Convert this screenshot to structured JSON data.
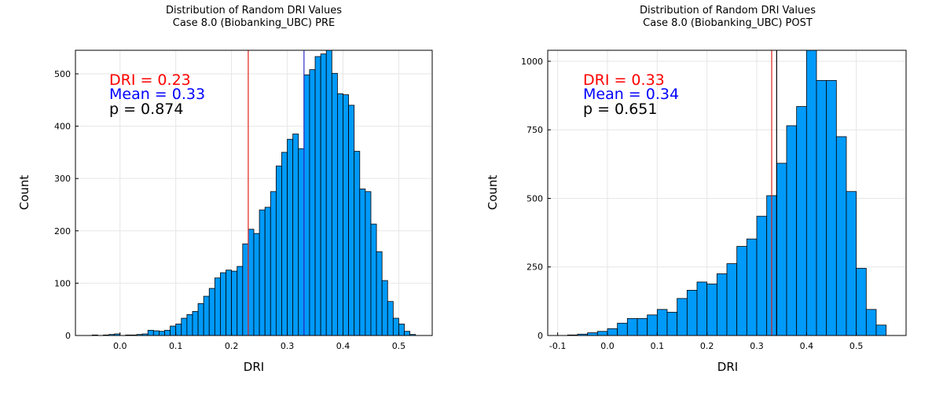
{
  "chart_data": [
    {
      "type": "bar",
      "title": "Distribution of Random DRI Values",
      "subtitle": "Case 8.0 (Biobanking_UBC) PRE",
      "xlabel": "DRI",
      "ylabel": "Count",
      "xlim": [
        -0.08,
        0.56
      ],
      "ylim": [
        0,
        545
      ],
      "xticks": [
        0.0,
        0.1,
        0.2,
        0.3,
        0.4,
        0.5
      ],
      "xtick_labels": [
        "0.0",
        "0.1",
        "0.2",
        "0.3",
        "0.4",
        "0.5"
      ],
      "yticks": [
        0,
        100,
        200,
        300,
        400,
        500
      ],
      "ytick_labels": [
        "0",
        "100",
        "200",
        "300",
        "400",
        "500"
      ],
      "bin_width": 0.01,
      "bin_starts": [
        -0.05,
        -0.04,
        -0.03,
        -0.02,
        -0.01,
        0.0,
        0.01,
        0.02,
        0.03,
        0.04,
        0.05,
        0.06,
        0.07,
        0.08,
        0.09,
        0.1,
        0.11,
        0.12,
        0.13,
        0.14,
        0.15,
        0.16,
        0.17,
        0.18,
        0.19,
        0.2,
        0.21,
        0.22,
        0.23,
        0.24,
        0.25,
        0.26,
        0.27,
        0.28,
        0.29,
        0.3,
        0.31,
        0.32,
        0.33,
        0.34,
        0.35,
        0.36,
        0.37,
        0.38,
        0.39,
        0.4,
        0.41,
        0.42,
        0.43,
        0.44,
        0.45,
        0.46,
        0.47,
        0.48,
        0.49,
        0.5,
        0.51,
        0.52
      ],
      "counts": [
        1,
        0,
        1,
        2,
        3,
        0,
        1,
        1,
        2,
        3,
        10,
        9,
        8,
        10,
        18,
        22,
        33,
        40,
        46,
        61,
        75,
        90,
        110,
        120,
        125,
        123,
        132,
        175,
        203,
        195,
        240,
        245,
        275,
        324,
        350,
        375,
        385,
        357,
        498,
        508,
        533,
        538,
        548,
        501,
        462,
        460,
        440,
        352,
        280,
        275,
        213,
        160,
        105,
        65,
        33,
        22,
        8,
        2
      ],
      "grid": true,
      "legend": "none",
      "vlines": [
        {
          "x": 0.23,
          "color": "#e0201b"
        },
        {
          "x": 0.33,
          "color": "#2d2dc8"
        }
      ],
      "annotations": [
        {
          "text": "DRI = 0.23",
          "color": "#ff0000"
        },
        {
          "text": "Mean = 0.33",
          "color": "#0000ff"
        },
        {
          "text": "p = 0.874",
          "color": "#000000"
        }
      ],
      "bar_color": "#009af9"
    },
    {
      "type": "bar",
      "title": "Distribution of Random DRI Values",
      "subtitle": "Case 8.0 (Biobanking_UBC) POST",
      "xlabel": "DRI",
      "ylabel": "Count",
      "xlim": [
        -0.12,
        0.6
      ],
      "ylim": [
        0,
        1040
      ],
      "xticks": [
        -0.1,
        0.0,
        0.1,
        0.2,
        0.3,
        0.4,
        0.5
      ],
      "xtick_labels": [
        "-0.1",
        "0.0",
        "0.1",
        "0.2",
        "0.3",
        "0.4",
        "0.5"
      ],
      "yticks": [
        0,
        250,
        500,
        750,
        1000
      ],
      "ytick_labels": [
        "0",
        "250",
        "500",
        "750",
        "1000"
      ],
      "bin_width": 0.02,
      "bin_starts": [
        -0.08,
        -0.06,
        -0.04,
        -0.02,
        0.0,
        0.02,
        0.04,
        0.06,
        0.08,
        0.1,
        0.12,
        0.14,
        0.16,
        0.18,
        0.2,
        0.22,
        0.24,
        0.26,
        0.28,
        0.3,
        0.32,
        0.34,
        0.36,
        0.38,
        0.4,
        0.42,
        0.44,
        0.46,
        0.48,
        0.5,
        0.52,
        0.54
      ],
      "counts": [
        2,
        5,
        10,
        15,
        25,
        45,
        62,
        62,
        75,
        95,
        85,
        135,
        165,
        195,
        188,
        225,
        262,
        325,
        352,
        435,
        510,
        628,
        765,
        835,
        1040,
        930,
        930,
        725,
        525,
        245,
        95,
        38
      ],
      "grid": true,
      "legend": "none",
      "vlines": [
        {
          "x": 0.33,
          "color": "#e0201b"
        },
        {
          "x": 0.34,
          "color": "#000000"
        }
      ],
      "annotations": [
        {
          "text": "DRI = 0.33",
          "color": "#ff0000"
        },
        {
          "text": "Mean = 0.34",
          "color": "#0000ff"
        },
        {
          "text": "p = 0.651",
          "color": "#000000"
        }
      ],
      "bar_color": "#009af9"
    }
  ]
}
